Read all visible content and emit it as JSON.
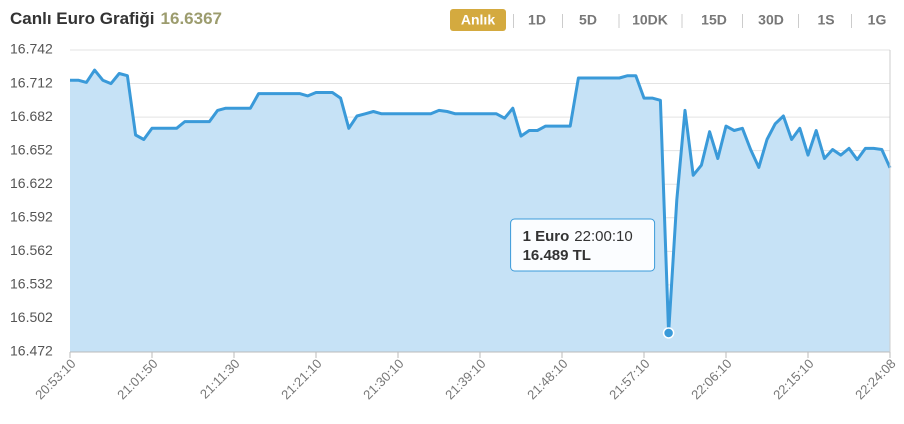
{
  "chart_data": {
    "type": "line",
    "title": "Canlı Euro Grafiği",
    "subtitle": "16.6367",
    "tabs": [
      "Anlık",
      "1D",
      "5D",
      "10DK",
      "15D",
      "30D",
      "1S",
      "1G"
    ],
    "active_tab": 0,
    "categories": [
      "20:53:10",
      null,
      null,
      null,
      null,
      null,
      null,
      null,
      null,
      null,
      "21:01:50",
      null,
      null,
      null,
      null,
      null,
      null,
      null,
      null,
      null,
      "21:11:30",
      null,
      null,
      null,
      null,
      null,
      null,
      null,
      null,
      null,
      "21:21:10",
      null,
      null,
      null,
      null,
      null,
      null,
      null,
      null,
      null,
      "21:30:10",
      null,
      null,
      null,
      null,
      null,
      null,
      null,
      null,
      null,
      "21:39:10",
      null,
      null,
      null,
      null,
      null,
      null,
      null,
      null,
      null,
      "21:48:10",
      null,
      null,
      null,
      null,
      null,
      null,
      null,
      null,
      null,
      "21:57:10",
      null,
      null,
      null,
      null,
      null,
      null,
      null,
      null,
      null,
      "22:06:10",
      null,
      null,
      null,
      null,
      null,
      null,
      null,
      null,
      null,
      "22:15:10",
      null,
      null,
      null,
      null,
      null,
      null,
      null,
      null,
      null,
      "22:24:08"
    ],
    "series": [
      {
        "name": "1 Euro",
        "color": "#3a9ad9",
        "fill": "#c6e2f6",
        "values": [
          16.715,
          16.715,
          16.713,
          16.724,
          16.715,
          16.712,
          16.721,
          16.719,
          16.666,
          16.662,
          16.672,
          16.672,
          16.672,
          16.672,
          16.678,
          16.678,
          16.678,
          16.678,
          16.688,
          16.69,
          16.69,
          16.69,
          16.69,
          16.703,
          16.703,
          16.703,
          16.703,
          16.703,
          16.703,
          16.701,
          16.704,
          16.704,
          16.704,
          16.699,
          16.672,
          16.683,
          16.685,
          16.687,
          16.685,
          16.685,
          16.685,
          16.685,
          16.685,
          16.685,
          16.685,
          16.688,
          16.687,
          16.685,
          16.685,
          16.685,
          16.685,
          16.685,
          16.685,
          16.681,
          16.69,
          16.665,
          16.67,
          16.67,
          16.674,
          16.674,
          16.674,
          16.674,
          16.717,
          16.717,
          16.717,
          16.717,
          16.717,
          16.717,
          16.719,
          16.719,
          16.699,
          16.699,
          16.697,
          16.489,
          16.608,
          16.688,
          16.63,
          16.639,
          16.669,
          16.645,
          16.674,
          16.67,
          16.672,
          16.653,
          16.637,
          16.662,
          16.676,
          16.683,
          16.662,
          16.672,
          16.648,
          16.67,
          16.645,
          16.653,
          16.648,
          16.654,
          16.644,
          16.654,
          16.654,
          16.653,
          16.6367
        ]
      }
    ],
    "tooltip": {
      "name": "1 Euro",
      "time": "22:00:10",
      "value_label": "16.489 TL"
    },
    "ylim": [
      16.472,
      16.742
    ],
    "yticks": [
      16.742,
      16.712,
      16.682,
      16.652,
      16.622,
      16.592,
      16.562,
      16.532,
      16.502,
      16.472
    ],
    "grid": true
  }
}
